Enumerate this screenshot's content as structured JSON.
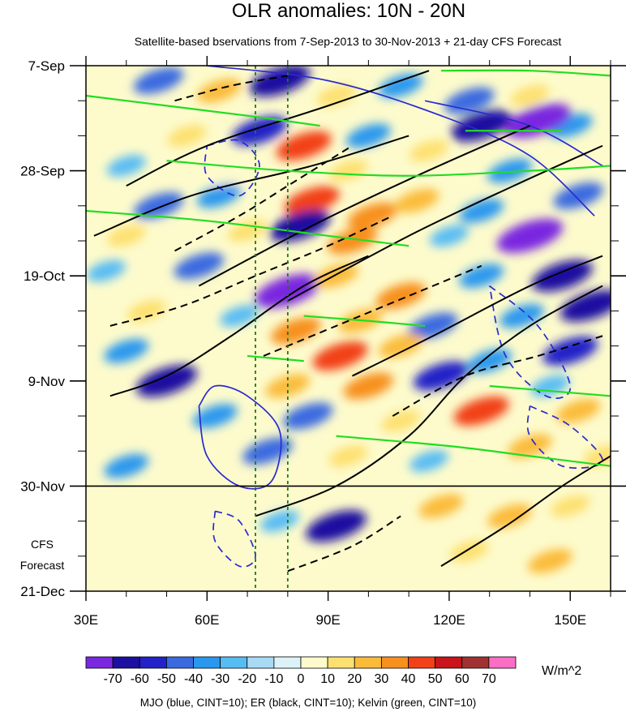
{
  "chart_data": {
    "type": "heatmap",
    "title": "OLR anomalies: 10N - 20N",
    "subtitle": "Satellite-based bservations from 7-Sep-2013 to 30-Nov-2013 + 21-day CFS Forecast",
    "xlabel": "",
    "ylabel": "",
    "x_range": [
      30,
      160
    ],
    "x_ticks": [
      {
        "value": 30,
        "label": "30E"
      },
      {
        "value": 60,
        "label": "60E"
      },
      {
        "value": 90,
        "label": "90E"
      },
      {
        "value": 120,
        "label": "120E"
      },
      {
        "value": 150,
        "label": "150E"
      }
    ],
    "x_minor_ticks": [
      40,
      50,
      70,
      80,
      100,
      110,
      130,
      140,
      160
    ],
    "y_ticks": [
      {
        "day": 0,
        "label": "7-Sep"
      },
      {
        "day": 21,
        "label": "28-Sep"
      },
      {
        "day": 42,
        "label": "19-Oct"
      },
      {
        "day": 63,
        "label": "9-Nov"
      },
      {
        "day": 84,
        "label": "30-Nov"
      },
      {
        "day": 105,
        "label": "21-Dec"
      }
    ],
    "y_range_days": [
      0,
      105
    ],
    "forecast_start_day": 84,
    "forecast_label": [
      "CFS",
      "Forecast"
    ],
    "reference_lines_lon": [
      72,
      80
    ],
    "colorbar": {
      "levels": [
        -70,
        -60,
        -50,
        -40,
        -30,
        -20,
        -10,
        0,
        10,
        20,
        30,
        40,
        50,
        60,
        70
      ],
      "labels": [
        "-70",
        "-60",
        "-50",
        "-40",
        "-30",
        "-20",
        "-10",
        "0",
        "10",
        "20",
        "30",
        "40",
        "50",
        "60",
        "70"
      ],
      "colors": [
        "#7a28e0",
        "#1c10a0",
        "#2222c8",
        "#3a6ae0",
        "#2a98ee",
        "#58bcf4",
        "#a8daf6",
        "#dcf2f8",
        "#fdfbcc",
        "#fde070",
        "#fbbb3a",
        "#f7901e",
        "#f24018",
        "#c8141a",
        "#a03232",
        "#fa6ec4"
      ],
      "units": "W/m^2"
    },
    "footnote": "MJO (blue, CINT=10); ER (black, CINT=10); Kelvin (green, CINT=10)",
    "anomaly_cells": [
      {
        "lon": 48,
        "day": 3,
        "value": -40
      },
      {
        "lon": 63,
        "day": 5,
        "value": 30
      },
      {
        "lon": 78,
        "day": 3,
        "value": -60
      },
      {
        "lon": 92,
        "day": 6,
        "value": 20
      },
      {
        "lon": 108,
        "day": 4,
        "value": -30
      },
      {
        "lon": 125,
        "day": 7,
        "value": -40
      },
      {
        "lon": 140,
        "day": 6,
        "value": 20
      },
      {
        "lon": 150,
        "day": 12,
        "value": -30
      },
      {
        "lon": 128,
        "day": 12,
        "value": -60
      },
      {
        "lon": 142,
        "day": 11,
        "value": -70
      },
      {
        "lon": 55,
        "day": 14,
        "value": 20
      },
      {
        "lon": 73,
        "day": 13,
        "value": -50
      },
      {
        "lon": 84,
        "day": 16,
        "value": 50
      },
      {
        "lon": 100,
        "day": 14,
        "value": -30
      },
      {
        "lon": 115,
        "day": 17,
        "value": 20
      },
      {
        "lon": 40,
        "day": 20,
        "value": -20
      },
      {
        "lon": 66,
        "day": 23,
        "value": 10
      },
      {
        "lon": 95,
        "day": 21,
        "value": 20
      },
      {
        "lon": 135,
        "day": 21,
        "value": -30
      },
      {
        "lon": 48,
        "day": 28,
        "value": -40
      },
      {
        "lon": 63,
        "day": 26,
        "value": -30
      },
      {
        "lon": 86,
        "day": 27,
        "value": 50
      },
      {
        "lon": 101,
        "day": 30,
        "value": 40
      },
      {
        "lon": 112,
        "day": 27,
        "value": 30
      },
      {
        "lon": 128,
        "day": 29,
        "value": -30
      },
      {
        "lon": 152,
        "day": 26,
        "value": -40
      },
      {
        "lon": 40,
        "day": 34,
        "value": 20
      },
      {
        "lon": 70,
        "day": 33,
        "value": 20
      },
      {
        "lon": 83,
        "day": 32,
        "value": -60
      },
      {
        "lon": 96,
        "day": 35,
        "value": 40
      },
      {
        "lon": 120,
        "day": 34,
        "value": -20
      },
      {
        "lon": 140,
        "day": 34,
        "value": -70
      },
      {
        "lon": 35,
        "day": 41,
        "value": -20
      },
      {
        "lon": 58,
        "day": 40,
        "value": -40
      },
      {
        "lon": 80,
        "day": 45,
        "value": -70
      },
      {
        "lon": 92,
        "day": 42,
        "value": 30
      },
      {
        "lon": 108,
        "day": 46,
        "value": 40
      },
      {
        "lon": 128,
        "day": 42,
        "value": -30
      },
      {
        "lon": 148,
        "day": 42,
        "value": -60
      },
      {
        "lon": 45,
        "day": 49,
        "value": 20
      },
      {
        "lon": 68,
        "day": 50,
        "value": -20
      },
      {
        "lon": 82,
        "day": 53,
        "value": 40
      },
      {
        "lon": 98,
        "day": 51,
        "value": 30
      },
      {
        "lon": 116,
        "day": 52,
        "value": -40
      },
      {
        "lon": 138,
        "day": 50,
        "value": -30
      },
      {
        "lon": 155,
        "day": 48,
        "value": -60
      },
      {
        "lon": 40,
        "day": 57,
        "value": -30
      },
      {
        "lon": 70,
        "day": 58,
        "value": 10
      },
      {
        "lon": 93,
        "day": 58,
        "value": 50
      },
      {
        "lon": 108,
        "day": 56,
        "value": 30
      },
      {
        "lon": 130,
        "day": 59,
        "value": -30
      },
      {
        "lon": 150,
        "day": 57,
        "value": -50
      },
      {
        "lon": 50,
        "day": 63,
        "value": -60
      },
      {
        "lon": 80,
        "day": 64,
        "value": 30
      },
      {
        "lon": 100,
        "day": 64,
        "value": 40
      },
      {
        "lon": 118,
        "day": 62,
        "value": -50
      },
      {
        "lon": 145,
        "day": 64,
        "value": -20
      },
      {
        "lon": 62,
        "day": 70,
        "value": -30
      },
      {
        "lon": 85,
        "day": 70,
        "value": -40
      },
      {
        "lon": 108,
        "day": 71,
        "value": 20
      },
      {
        "lon": 128,
        "day": 69,
        "value": 50
      },
      {
        "lon": 152,
        "day": 69,
        "value": 30
      },
      {
        "lon": 75,
        "day": 77,
        "value": -40
      },
      {
        "lon": 95,
        "day": 78,
        "value": 20
      },
      {
        "lon": 115,
        "day": 79,
        "value": -20
      },
      {
        "lon": 140,
        "day": 76,
        "value": 30
      },
      {
        "lon": 158,
        "day": 78,
        "value": 20
      },
      {
        "lon": 40,
        "day": 80,
        "value": -30
      },
      {
        "lon": 62,
        "day": 88,
        "value": 10
      },
      {
        "lon": 78,
        "day": 91,
        "value": -20
      },
      {
        "lon": 92,
        "day": 92,
        "value": -60
      },
      {
        "lon": 118,
        "day": 88,
        "value": 30
      },
      {
        "lon": 135,
        "day": 90,
        "value": 30
      },
      {
        "lon": 150,
        "day": 88,
        "value": 20
      },
      {
        "lon": 125,
        "day": 97,
        "value": 20
      },
      {
        "lon": 145,
        "day": 99,
        "value": 30
      },
      {
        "lon": 48,
        "day": 96,
        "value": 10
      },
      {
        "lon": 100,
        "day": 101,
        "value": 10
      }
    ],
    "contours": {
      "mjo_blue": [
        {
          "dash": false,
          "points": [
            [
              60,
              0
            ],
            [
              90,
              3
            ],
            [
              118,
              10
            ],
            [
              140,
              18
            ],
            [
              156,
              30
            ]
          ]
        },
        {
          "dash": false,
          "points": [
            [
              114,
              7
            ],
            [
              140,
              12
            ],
            [
              158,
              20
            ]
          ]
        },
        {
          "dash": false,
          "points": [
            [
              58,
              68
            ],
            [
              62,
              64
            ],
            [
              70,
              66
            ],
            [
              78,
              73
            ],
            [
              76,
              83
            ],
            [
              68,
              84
            ],
            [
              60,
              78
            ],
            [
              58,
              68
            ]
          ]
        },
        {
          "dash": true,
          "points": [
            [
              60,
              16
            ],
            [
              68,
              15
            ],
            [
              73,
              20
            ],
            [
              68,
              26
            ],
            [
              60,
              22
            ],
            [
              60,
              16
            ]
          ]
        },
        {
          "dash": true,
          "points": [
            [
              62,
              89
            ],
            [
              68,
              91
            ],
            [
              72,
              98
            ],
            [
              68,
              100
            ],
            [
              62,
              95
            ],
            [
              62,
              89
            ]
          ]
        },
        {
          "dash": true,
          "points": [
            [
              130,
              44
            ],
            [
              142,
              52
            ],
            [
              150,
              64
            ],
            [
              144,
              66
            ],
            [
              134,
              58
            ],
            [
              130,
              44
            ]
          ]
        },
        {
          "dash": true,
          "points": [
            [
              140,
              68
            ],
            [
              150,
              72
            ],
            [
              158,
              79
            ],
            [
              148,
              80
            ],
            [
              140,
              74
            ],
            [
              140,
              68
            ]
          ]
        }
      ],
      "er_black": [
        {
          "dash": false,
          "points": [
            [
              40,
              24
            ],
            [
              60,
              16
            ],
            [
              90,
              8
            ],
            [
              115,
              1
            ]
          ]
        },
        {
          "dash": false,
          "points": [
            [
              32,
              34
            ],
            [
              56,
              26
            ],
            [
              86,
              20
            ],
            [
              110,
              14
            ]
          ]
        },
        {
          "dash": false,
          "points": [
            [
              58,
              44
            ],
            [
              86,
              32
            ],
            [
              112,
              22
            ],
            [
              140,
              12
            ]
          ]
        },
        {
          "dash": false,
          "points": [
            [
              80,
              47
            ],
            [
              110,
              34
            ],
            [
              136,
              24
            ],
            [
              158,
              16
            ]
          ]
        },
        {
          "dash": false,
          "points": [
            [
              36,
              66
            ],
            [
              50,
              62
            ],
            [
              66,
              54
            ],
            [
              84,
              44
            ],
            [
              100,
              38
            ]
          ]
        },
        {
          "dash": false,
          "points": [
            [
              96,
              62
            ],
            [
              116,
              54
            ],
            [
              140,
              44
            ],
            [
              158,
              38
            ]
          ]
        },
        {
          "dash": false,
          "points": [
            [
              72,
              90
            ],
            [
              92,
              84
            ],
            [
              110,
              74
            ],
            [
              124,
              62
            ],
            [
              140,
              52
            ],
            [
              158,
              44
            ]
          ]
        },
        {
          "dash": false,
          "points": [
            [
              118,
              100
            ],
            [
              134,
              92
            ],
            [
              148,
              84
            ],
            [
              160,
              78
            ]
          ]
        },
        {
          "dash": true,
          "points": [
            [
              52,
              37
            ],
            [
              68,
              30
            ],
            [
              80,
              24
            ],
            [
              96,
              16
            ]
          ]
        },
        {
          "dash": true,
          "points": [
            [
              36,
              52
            ],
            [
              54,
              48
            ],
            [
              72,
              42
            ],
            [
              90,
              36
            ],
            [
              106,
              30
            ]
          ]
        },
        {
          "dash": true,
          "points": [
            [
              74,
              58
            ],
            [
              92,
              52
            ],
            [
              110,
              46
            ],
            [
              128,
              40
            ]
          ]
        },
        {
          "dash": true,
          "points": [
            [
              106,
              70
            ],
            [
              124,
              62
            ],
            [
              142,
              58
            ],
            [
              158,
              54
            ]
          ]
        },
        {
          "dash": true,
          "points": [
            [
              52,
              7
            ],
            [
              66,
              4
            ],
            [
              80,
              2
            ]
          ]
        },
        {
          "dash": true,
          "points": [
            [
              80,
              101
            ],
            [
              96,
              96
            ],
            [
              108,
              90
            ]
          ]
        }
      ],
      "kelvin_green": [
        {
          "dash": false,
          "points": [
            [
              30,
              6
            ],
            [
              50,
              8
            ],
            [
              70,
              10
            ],
            [
              88,
              12
            ]
          ]
        },
        {
          "dash": false,
          "points": [
            [
              50,
              19
            ],
            [
              80,
              21
            ],
            [
              110,
              22
            ],
            [
              140,
              21
            ],
            [
              160,
              20
            ]
          ]
        },
        {
          "dash": false,
          "points": [
            [
              30,
              29
            ],
            [
              60,
              31
            ],
            [
              90,
              34
            ],
            [
              110,
              36
            ]
          ]
        },
        {
          "dash": false,
          "points": [
            [
              84,
              50
            ],
            [
              100,
              51
            ],
            [
              114,
              52
            ]
          ]
        },
        {
          "dash": false,
          "points": [
            [
              70,
              58
            ],
            [
              84,
              59
            ]
          ]
        },
        {
          "dash": false,
          "points": [
            [
              92,
              74
            ],
            [
              120,
              76
            ],
            [
              140,
              78
            ],
            [
              160,
              80
            ]
          ]
        },
        {
          "dash": false,
          "points": [
            [
              118,
              1
            ],
            [
              140,
              1
            ],
            [
              160,
              2
            ]
          ]
        },
        {
          "dash": false,
          "points": [
            [
              124,
              13
            ],
            [
              148,
              13
            ]
          ]
        },
        {
          "dash": false,
          "points": [
            [
              130,
              64
            ],
            [
              160,
              66
            ]
          ]
        }
      ]
    }
  }
}
